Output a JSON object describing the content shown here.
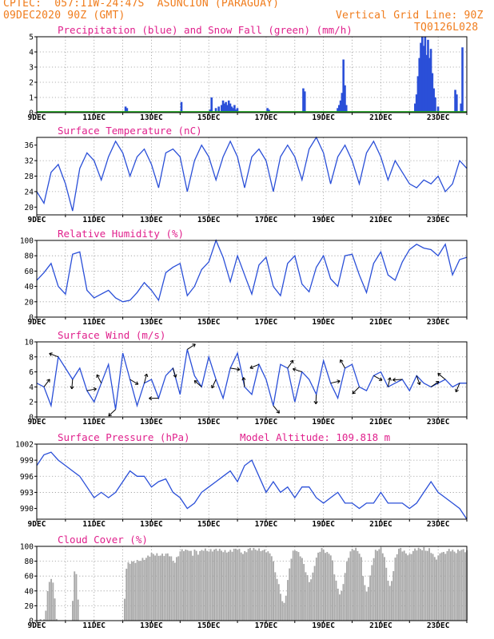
{
  "header": {
    "line1": "CPTEC:  057:11W-24:47S  ASUNCION (PARAGUAY)",
    "line2": "09DEC2020 90Z (GMT)",
    "grid_note": "Vertical Grid Line: 90Z",
    "code": "TQ0126L028"
  },
  "x_dates": [
    "9DEC",
    "11DEC",
    "13DEC",
    "15DEC",
    "17DEC",
    "19DEC",
    "21DEC",
    "23DEC"
  ],
  "colors": {
    "line": "#2a4fd8",
    "snow": "#1fa51f",
    "cloud": "#a9a9a9",
    "title": "#e0208c",
    "header": "#f07c1c"
  },
  "chart_data": [
    {
      "type": "bar",
      "title": "Precipitation (blue) and Snow Fall (green) (mm/h)",
      "ylim": [
        0,
        5
      ],
      "yticks": [
        "0",
        "1",
        "2",
        "3",
        "4",
        "5"
      ],
      "series": [
        {
          "name": "Precipitation",
          "values": [
            [
              3.1,
              0.4
            ],
            [
              3.15,
              0.3
            ],
            [
              5.05,
              0.7
            ],
            [
              6.05,
              0.2
            ],
            [
              6.1,
              1.0
            ],
            [
              6.25,
              0.3
            ],
            [
              6.35,
              0.4
            ],
            [
              6.45,
              0.5
            ],
            [
              6.5,
              0.8
            ],
            [
              6.55,
              0.6
            ],
            [
              6.6,
              0.7
            ],
            [
              6.65,
              0.5
            ],
            [
              6.7,
              0.8
            ],
            [
              6.75,
              0.6
            ],
            [
              6.8,
              0.4
            ],
            [
              6.85,
              0.3
            ],
            [
              6.9,
              0.5
            ],
            [
              6.95,
              0.2
            ],
            [
              7.0,
              0.3
            ],
            [
              8.05,
              0.3
            ],
            [
              8.1,
              0.2
            ],
            [
              9.3,
              1.6
            ],
            [
              9.35,
              1.4
            ],
            [
              10.5,
              0.3
            ],
            [
              10.55,
              0.5
            ],
            [
              10.6,
              0.8
            ],
            [
              10.65,
              1.3
            ],
            [
              10.7,
              3.5
            ],
            [
              10.75,
              1.8
            ],
            [
              10.8,
              0.5
            ],
            [
              13.2,
              0.6
            ],
            [
              13.25,
              1.2
            ],
            [
              13.3,
              2.4
            ],
            [
              13.35,
              3.6
            ],
            [
              13.4,
              4.6
            ],
            [
              13.45,
              5.0
            ],
            [
              13.5,
              4.4
            ],
            [
              13.55,
              5.0
            ],
            [
              13.6,
              3.8
            ],
            [
              13.65,
              4.8
            ],
            [
              13.7,
              3.6
            ],
            [
              13.75,
              4.2
            ],
            [
              13.8,
              2.6
            ],
            [
              13.85,
              1.6
            ],
            [
              13.9,
              1.0
            ],
            [
              14.0,
              0.4
            ],
            [
              14.6,
              1.5
            ],
            [
              14.65,
              1.2
            ],
            [
              14.8,
              0.6
            ],
            [
              14.85,
              4.3
            ]
          ]
        },
        {
          "name": "Snow Fall",
          "values": []
        }
      ]
    },
    {
      "type": "line",
      "title": "Surface Temperature (nC)",
      "ylim": [
        18,
        38
      ],
      "yticks": [
        "20",
        "24",
        "28",
        "32",
        "36"
      ],
      "x": [
        0,
        0.25,
        0.5,
        0.75,
        1.0,
        1.25,
        1.5,
        1.75,
        2.0,
        2.25,
        2.5,
        2.75,
        3.0,
        3.25,
        3.5,
        3.75,
        4.0,
        4.25,
        4.5,
        4.75,
        5.0,
        5.25,
        5.5,
        5.75,
        6.0,
        6.25,
        6.5,
        6.75,
        7.0,
        7.25,
        7.5,
        7.75,
        8.0,
        8.25,
        8.5,
        8.75,
        9.0,
        9.25,
        9.5,
        9.75,
        10.0,
        10.25,
        10.5,
        10.75,
        11.0,
        11.25,
        11.5,
        11.75,
        12.0,
        12.25,
        12.5,
        12.75,
        13.0,
        13.25,
        13.5,
        13.75,
        14.0,
        14.25,
        14.5,
        14.75,
        15.0
      ],
      "y": [
        24,
        21,
        29,
        31,
        26,
        19,
        30,
        34,
        32,
        27,
        33,
        37,
        34,
        28,
        33,
        35,
        31,
        25,
        34,
        35,
        33,
        24,
        32,
        36,
        33,
        27,
        33,
        37,
        33,
        25,
        33,
        35,
        32,
        24,
        33,
        36,
        33,
        27,
        35,
        38,
        34,
        26,
        33,
        36,
        32,
        26,
        34,
        37,
        33,
        27,
        32,
        29,
        26,
        25,
        27,
        26,
        28,
        24,
        26,
        32,
        30
      ]
    },
    {
      "type": "line",
      "title": "Relative Humidity (%)",
      "ylim": [
        0,
        100
      ],
      "yticks": [
        "0",
        "20",
        "40",
        "60",
        "80",
        "100"
      ],
      "x": [
        0,
        0.25,
        0.5,
        0.75,
        1.0,
        1.25,
        1.5,
        1.75,
        2.0,
        2.25,
        2.5,
        2.75,
        3.0,
        3.25,
        3.5,
        3.75,
        4.0,
        4.25,
        4.5,
        4.75,
        5.0,
        5.25,
        5.5,
        5.75,
        6.0,
        6.25,
        6.5,
        6.75,
        7.0,
        7.25,
        7.5,
        7.75,
        8.0,
        8.25,
        8.5,
        8.75,
        9.0,
        9.25,
        9.5,
        9.75,
        10.0,
        10.25,
        10.5,
        10.75,
        11.0,
        11.25,
        11.5,
        11.75,
        12.0,
        12.25,
        12.5,
        12.75,
        13.0,
        13.25,
        13.5,
        13.75,
        14.0,
        14.25,
        14.5,
        14.75,
        15.0
      ],
      "y": [
        48,
        58,
        70,
        40,
        30,
        82,
        85,
        35,
        25,
        30,
        35,
        25,
        20,
        22,
        32,
        45,
        35,
        22,
        58,
        65,
        70,
        28,
        40,
        62,
        72,
        100,
        78,
        46,
        80,
        55,
        30,
        68,
        78,
        40,
        28,
        70,
        80,
        43,
        33,
        65,
        80,
        50,
        40,
        80,
        82,
        55,
        32,
        70,
        85,
        55,
        48,
        72,
        88,
        95,
        90,
        88,
        80,
        95,
        55,
        75,
        78
      ]
    },
    {
      "type": "line",
      "title": "Surface Wind (m/s)",
      "ylim": [
        0,
        10
      ],
      "yticks": [
        "0",
        "2",
        "4",
        "6",
        "8",
        "10"
      ],
      "x": [
        0,
        0.25,
        0.5,
        0.75,
        1.0,
        1.25,
        1.5,
        1.75,
        2.0,
        2.25,
        2.5,
        2.75,
        3.0,
        3.25,
        3.5,
        3.75,
        4.0,
        4.25,
        4.5,
        4.75,
        5.0,
        5.25,
        5.5,
        5.75,
        6.0,
        6.25,
        6.5,
        6.75,
        7.0,
        7.25,
        7.5,
        7.75,
        8.0,
        8.25,
        8.5,
        8.75,
        9.0,
        9.25,
        9.5,
        9.75,
        10.0,
        10.25,
        10.5,
        10.75,
        11.0,
        11.25,
        11.5,
        11.75,
        12.0,
        12.25,
        12.5,
        12.75,
        13.0,
        13.25,
        13.5,
        13.75,
        14.0,
        14.25,
        14.5,
        14.75,
        15.0
      ],
      "y": [
        4.5,
        4.0,
        1.5,
        8.0,
        6.5,
        5.0,
        6.5,
        3.5,
        2.0,
        4.5,
        7.0,
        1.0,
        8.5,
        5.0,
        1.5,
        4.5,
        5.0,
        2.5,
        5.5,
        6.5,
        3.0,
        9.0,
        5.5,
        4.0,
        8.0,
        5.0,
        2.5,
        6.5,
        8.5,
        4.0,
        3.0,
        7.0,
        5.0,
        1.5,
        7.0,
        6.5,
        2.0,
        6.0,
        5.0,
        3.0,
        7.5,
        4.5,
        2.5,
        6.5,
        7.0,
        4.0,
        3.5,
        5.5,
        6.0,
        4.0,
        4.5,
        5.0,
        3.5,
        5.5,
        4.5,
        4.0,
        4.5,
        5.0,
        4.0,
        4.5,
        4.5
      ]
    },
    {
      "type": "line",
      "title": "Surface Pressure (hPa)",
      "subtitle": "Model Altitude: 109.818 m",
      "ylim": [
        988,
        1002
      ],
      "yticks": [
        "990",
        "993",
        "996",
        "999",
        "1002"
      ],
      "x": [
        0,
        0.25,
        0.5,
        0.75,
        1.0,
        1.25,
        1.5,
        1.75,
        2.0,
        2.25,
        2.5,
        2.75,
        3.0,
        3.25,
        3.5,
        3.75,
        4.0,
        4.25,
        4.5,
        4.75,
        5.0,
        5.25,
        5.5,
        5.75,
        6.0,
        6.25,
        6.5,
        6.75,
        7.0,
        7.25,
        7.5,
        7.75,
        8.0,
        8.25,
        8.5,
        8.75,
        9.0,
        9.25,
        9.5,
        9.75,
        10.0,
        10.25,
        10.5,
        10.75,
        11.0,
        11.25,
        11.5,
        11.75,
        12.0,
        12.25,
        12.5,
        12.75,
        13.0,
        13.25,
        13.5,
        13.75,
        14.0,
        14.25,
        14.5,
        14.75,
        15.0
      ],
      "y": [
        998,
        1000,
        1000.5,
        999,
        998,
        997,
        996,
        994,
        992,
        993,
        992,
        993,
        995,
        997,
        996,
        996,
        994,
        995,
        995.5,
        993,
        992,
        990,
        991,
        993,
        994,
        995,
        996,
        997,
        995,
        998,
        999,
        996,
        993,
        995,
        993,
        994,
        992,
        994,
        994,
        992,
        991,
        992,
        993,
        991,
        991,
        990,
        991,
        991,
        993,
        991,
        991,
        991,
        990,
        991,
        993,
        995,
        993,
        992,
        991,
        990,
        988
      ]
    },
    {
      "type": "bar",
      "title": "Cloud Cover (%)",
      "ylim": [
        0,
        100
      ],
      "yticks": [
        "0",
        "20",
        "40",
        "60",
        "80",
        "100"
      ],
      "series": [
        {
          "name": "Cloud Cover",
          "values": [
            [
              0.0,
              0
            ],
            [
              0.3,
              5
            ],
            [
              0.35,
              40
            ],
            [
              0.45,
              55
            ],
            [
              0.55,
              60
            ],
            [
              0.65,
              20
            ],
            [
              0.7,
              0
            ],
            [
              1.2,
              0
            ],
            [
              1.25,
              30
            ],
            [
              1.3,
              65
            ],
            [
              1.35,
              70
            ],
            [
              1.4,
              62
            ],
            [
              1.45,
              20
            ],
            [
              1.5,
              0
            ],
            [
              3.0,
              0
            ],
            [
              3.05,
              20
            ],
            [
              3.1,
              70
            ],
            [
              3.2,
              80
            ],
            [
              3.5,
              82
            ],
            [
              3.8,
              86
            ],
            [
              4.0,
              92
            ],
            [
              4.3,
              90
            ],
            [
              4.6,
              92
            ],
            [
              4.8,
              80
            ],
            [
              5.0,
              95
            ],
            [
              5.1,
              98
            ],
            [
              5.2,
              96
            ],
            [
              5.3,
              98
            ],
            [
              5.45,
              90
            ],
            [
              5.5,
              98
            ],
            [
              5.6,
              92
            ],
            [
              5.8,
              98
            ],
            [
              6.0,
              96
            ],
            [
              6.3,
              98
            ],
            [
              6.55,
              95
            ],
            [
              6.7,
              95
            ],
            [
              6.9,
              98
            ],
            [
              7.0,
              99
            ],
            [
              7.2,
              92
            ],
            [
              7.4,
              99
            ],
            [
              7.6,
              98
            ],
            [
              7.8,
              97
            ],
            [
              8.0,
              96
            ],
            [
              8.2,
              90
            ],
            [
              8.3,
              70
            ],
            [
              8.4,
              55
            ],
            [
              8.5,
              40
            ],
            [
              8.6,
              20
            ],
            [
              8.7,
              40
            ],
            [
              8.8,
              70
            ],
            [
              8.9,
              92
            ],
            [
              9.0,
              98
            ],
            [
              9.1,
              94
            ],
            [
              9.2,
              90
            ],
            [
              9.3,
              80
            ],
            [
              9.4,
              65
            ],
            [
              9.5,
              55
            ],
            [
              9.6,
              60
            ],
            [
              9.7,
              80
            ],
            [
              9.8,
              92
            ],
            [
              9.9,
              98
            ],
            [
              10.0,
              98
            ],
            [
              10.1,
              92
            ],
            [
              10.2,
              94
            ],
            [
              10.3,
              85
            ],
            [
              10.4,
              60
            ],
            [
              10.5,
              45
            ],
            [
              10.6,
              35
            ],
            [
              10.7,
              55
            ],
            [
              10.8,
              78
            ],
            [
              10.9,
              92
            ],
            [
              11.0,
              98
            ],
            [
              11.1,
              99
            ],
            [
              11.2,
              96
            ],
            [
              11.3,
              90
            ],
            [
              11.4,
              55
            ],
            [
              11.5,
              40
            ],
            [
              11.6,
              55
            ],
            [
              11.7,
              80
            ],
            [
              11.8,
              95
            ],
            [
              11.9,
              98
            ],
            [
              12.0,
              99
            ],
            [
              12.1,
              92
            ],
            [
              12.2,
              70
            ],
            [
              12.3,
              45
            ],
            [
              12.4,
              60
            ],
            [
              12.5,
              85
            ],
            [
              12.6,
              98
            ],
            [
              12.7,
              99
            ],
            [
              12.8,
              95
            ],
            [
              12.9,
              92
            ],
            [
              13.0,
              90
            ],
            [
              13.1,
              95
            ],
            [
              13.2,
              98
            ],
            [
              13.3,
              99
            ],
            [
              13.4,
              98
            ],
            [
              13.5,
              99
            ],
            [
              13.6,
              96
            ],
            [
              13.7,
              98
            ],
            [
              13.8,
              92
            ],
            [
              13.9,
              85
            ],
            [
              14.0,
              88
            ],
            [
              14.1,
              96
            ],
            [
              14.2,
              92
            ],
            [
              14.3,
              95
            ],
            [
              14.4,
              98
            ],
            [
              14.5,
              96
            ],
            [
              14.6,
              94
            ],
            [
              14.7,
              96
            ],
            [
              14.8,
              98
            ],
            [
              14.9,
              96
            ],
            [
              15.0,
              96
            ]
          ]
        }
      ]
    }
  ]
}
